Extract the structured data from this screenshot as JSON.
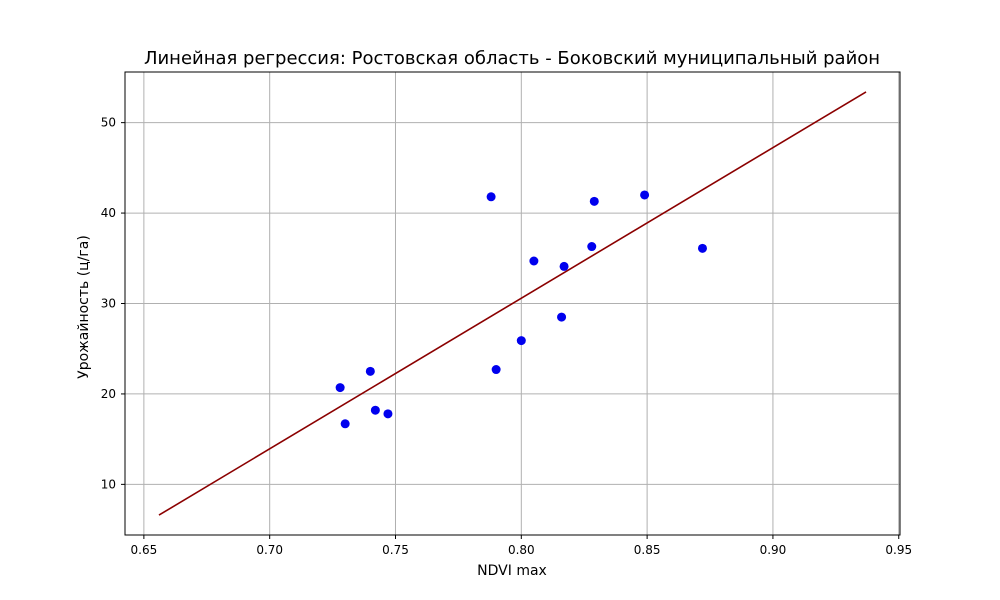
{
  "chart_data": {
    "type": "scatter",
    "title": "Линейная регрессия: Ростовская область - Боковский муниципальный район",
    "xlabel": "NDVI max",
    "ylabel": "Урожайность (ц/га)",
    "xlim": [
      0.6425,
      0.9505
    ],
    "ylim": [
      4.4,
      55.6
    ],
    "xticks": [
      "0.65",
      "0.70",
      "0.75",
      "0.80",
      "0.85",
      "0.90",
      "0.95"
    ],
    "yticks": [
      "10",
      "20",
      "30",
      "40",
      "50"
    ],
    "grid": true,
    "points": [
      {
        "x": 0.73,
        "y": 16.7
      },
      {
        "x": 0.728,
        "y": 20.7
      },
      {
        "x": 0.74,
        "y": 22.5
      },
      {
        "x": 0.742,
        "y": 18.2
      },
      {
        "x": 0.747,
        "y": 17.8
      },
      {
        "x": 0.788,
        "y": 41.8
      },
      {
        "x": 0.79,
        "y": 22.7
      },
      {
        "x": 0.8,
        "y": 25.9
      },
      {
        "x": 0.805,
        "y": 34.7
      },
      {
        "x": 0.816,
        "y": 28.5
      },
      {
        "x": 0.817,
        "y": 34.1
      },
      {
        "x": 0.828,
        "y": 36.3
      },
      {
        "x": 0.829,
        "y": 41.3
      },
      {
        "x": 0.849,
        "y": 42.0
      },
      {
        "x": 0.872,
        "y": 36.1
      }
    ],
    "regression_line": {
      "x": [
        0.656,
        0.937
      ],
      "y": [
        6.6,
        53.4
      ]
    },
    "point_color": "#0000ee",
    "line_color": "#8b0000",
    "grid_color": "#b0b0b0"
  }
}
